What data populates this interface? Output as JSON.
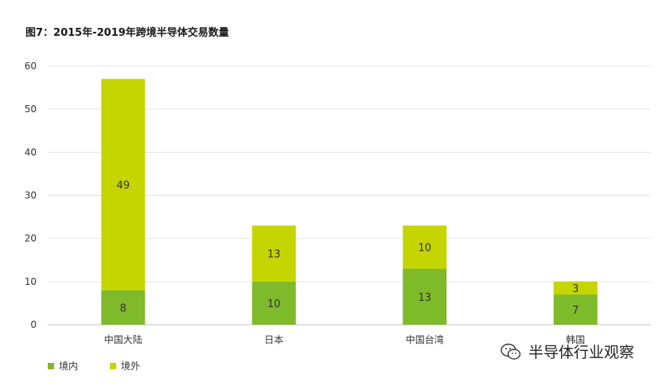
{
  "title": "图7：2015年-2019年跨境半导体交易数量",
  "chart_data": {
    "type": "bar",
    "stacked": true,
    "title": "图7：2015年-2019年跨境半导体交易数量",
    "categories": [
      "中国大陆",
      "日本",
      "中国台湾",
      "韩国"
    ],
    "series": [
      {
        "name": "境内",
        "values": [
          8,
          10,
          13,
          7
        ],
        "color": "#7fba2a"
      },
      {
        "name": "境外",
        "values": [
          49,
          13,
          10,
          3
        ],
        "color": "#c5d500"
      }
    ],
    "yticks": [
      "0",
      "10",
      "20",
      "30",
      "40",
      "50",
      "60"
    ],
    "ylim": [
      0,
      60
    ],
    "grid": true,
    "legend": "bottom-left"
  },
  "legend": {
    "items": [
      {
        "label": "境内",
        "color": "#7fba2a"
      },
      {
        "label": "境外",
        "color": "#c5d500"
      }
    ]
  },
  "watermark": {
    "text": "半导体行业观察",
    "icon": "wechat-icon"
  }
}
